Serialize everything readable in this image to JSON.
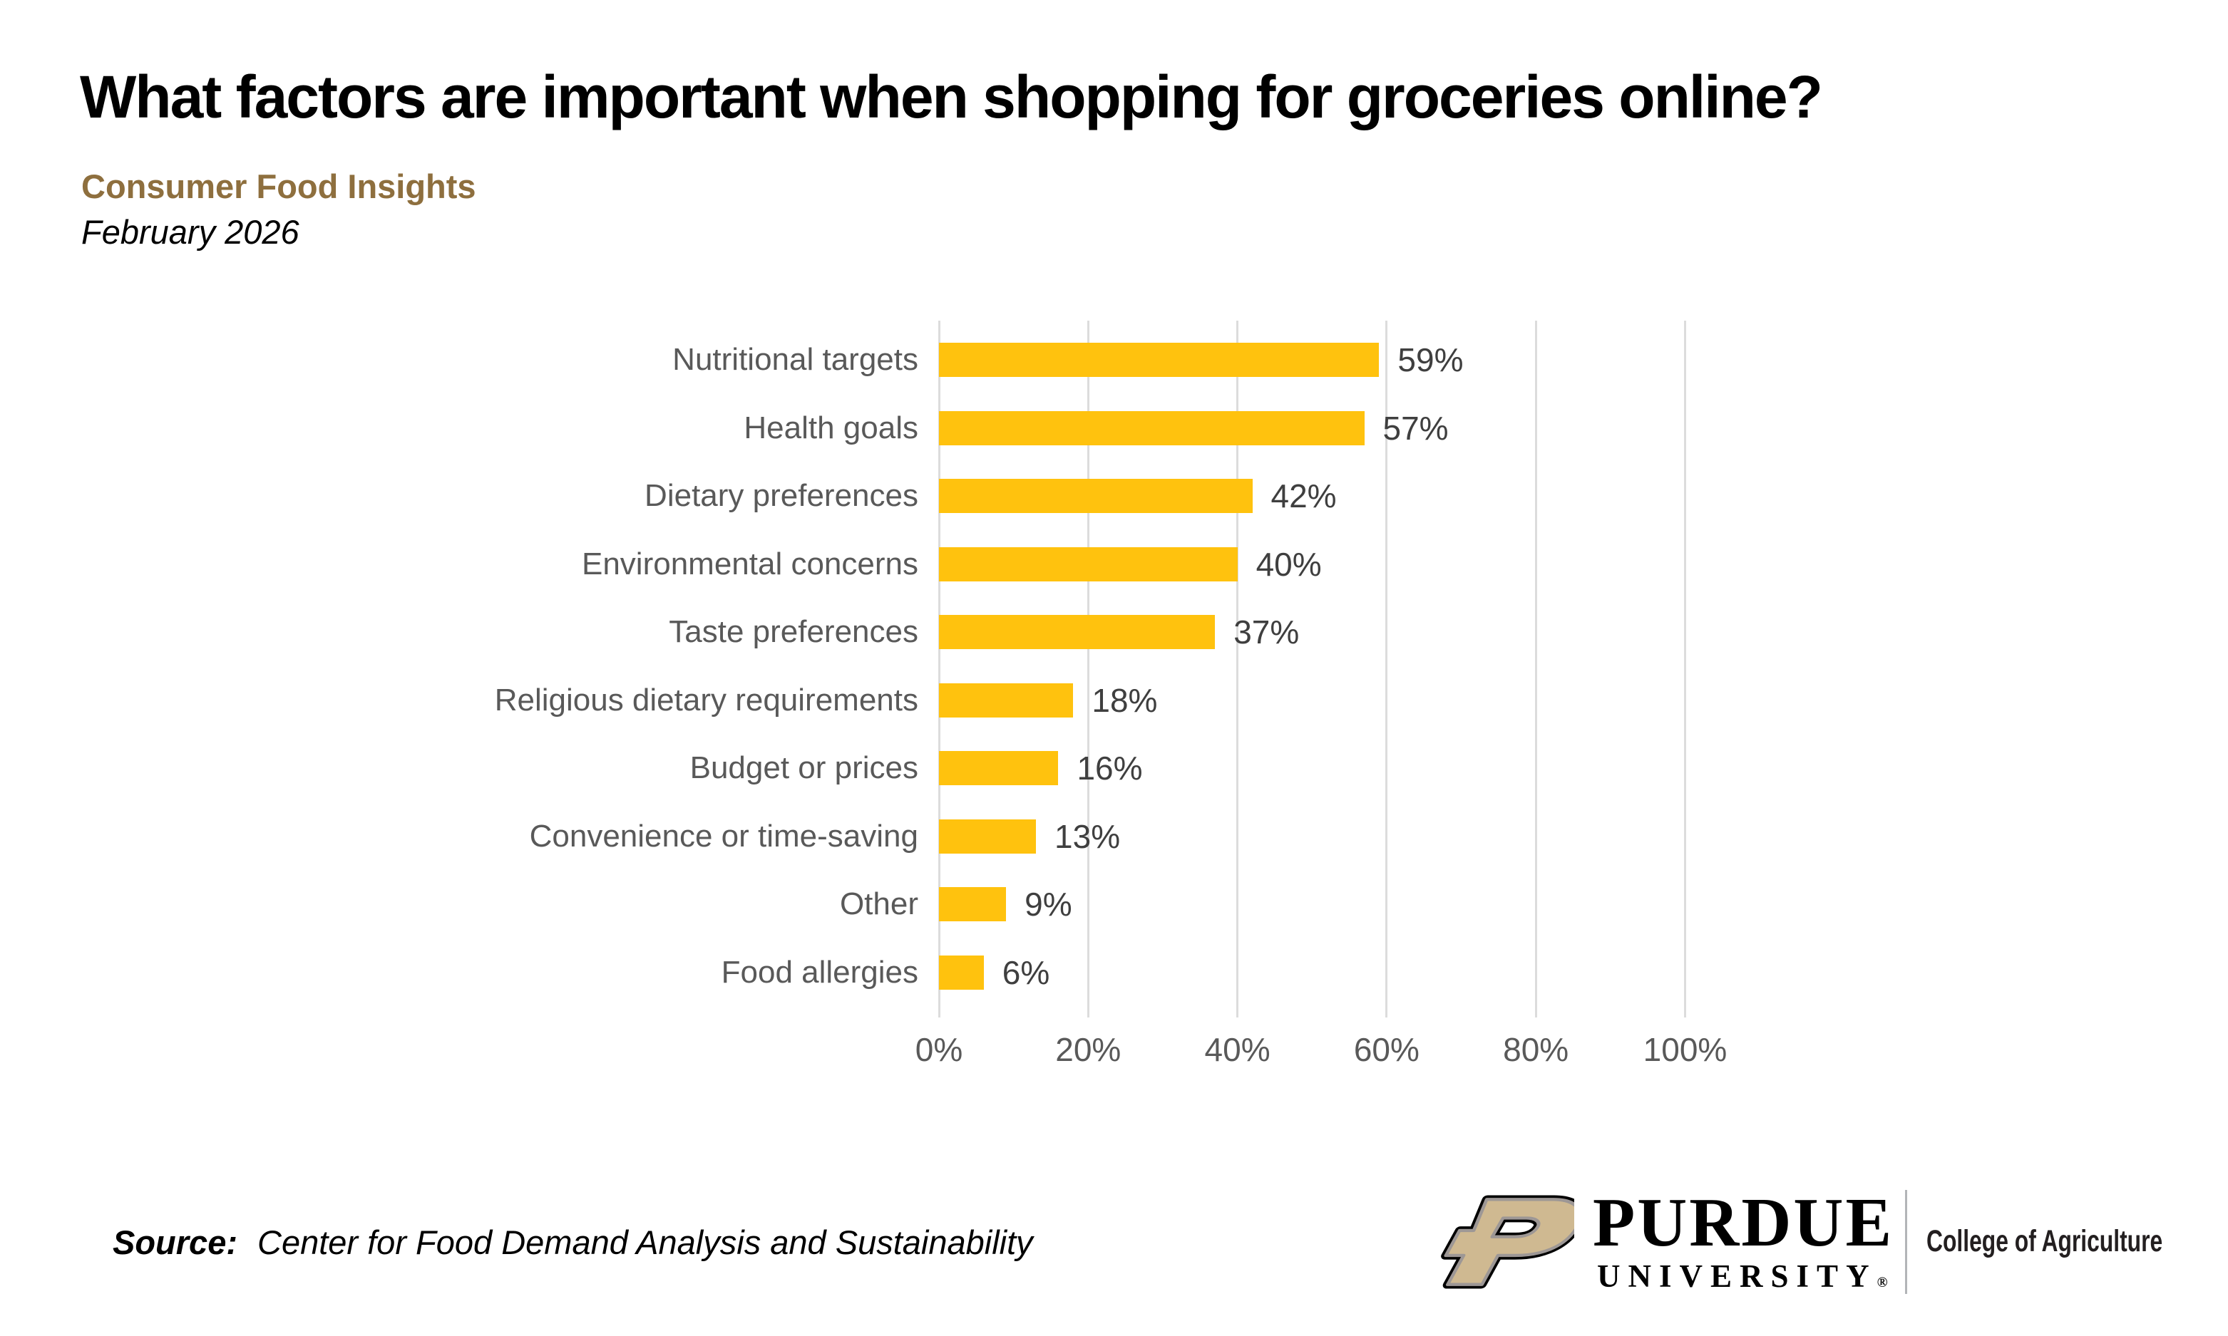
{
  "header": {
    "title": "What factors are important when shopping for groceries online?",
    "subtitle": "Consumer Food Insights",
    "date": "February 2026"
  },
  "chart_data": {
    "type": "bar",
    "orientation": "horizontal",
    "title": "What factors are important when shopping for groceries online?",
    "categories": [
      "Nutritional targets",
      "Health goals",
      "Dietary preferences",
      "Environmental concerns",
      "Taste preferences",
      "Religious dietary requirements",
      "Budget or prices",
      "Convenience or time-saving",
      "Other",
      "Food allergies"
    ],
    "values": [
      59,
      57,
      42,
      40,
      37,
      18,
      16,
      13,
      9,
      6
    ],
    "value_labels": [
      "59%",
      "57%",
      "42%",
      "40%",
      "37%",
      "18%",
      "16%",
      "13%",
      "9%",
      "6%"
    ],
    "xlabel": "",
    "ylabel": "",
    "xlim": [
      0,
      100
    ],
    "x_tick_values": [
      0,
      20,
      40,
      60,
      80,
      100
    ],
    "x_tick_labels": [
      "0%",
      "20%",
      "40%",
      "60%",
      "80%",
      "100%"
    ],
    "grid": "vertical",
    "legend": "none",
    "bar_color": "#FFC20E",
    "gridline_color": "#DCDCDC",
    "category_label_color": "#595959",
    "value_label_color": "#3F3F3F"
  },
  "footer": {
    "source_label": "Source:",
    "source_text": "Center for Food Demand Analysis and Sustainability",
    "logo": {
      "wordmark": "PURDUE",
      "wordmark2": "UNIVERSITY",
      "registered": "®",
      "unit": "College of Agriculture",
      "p_gold": "#CFB991",
      "p_inner_line": "#9D9795",
      "p_outline": "#000000"
    }
  }
}
